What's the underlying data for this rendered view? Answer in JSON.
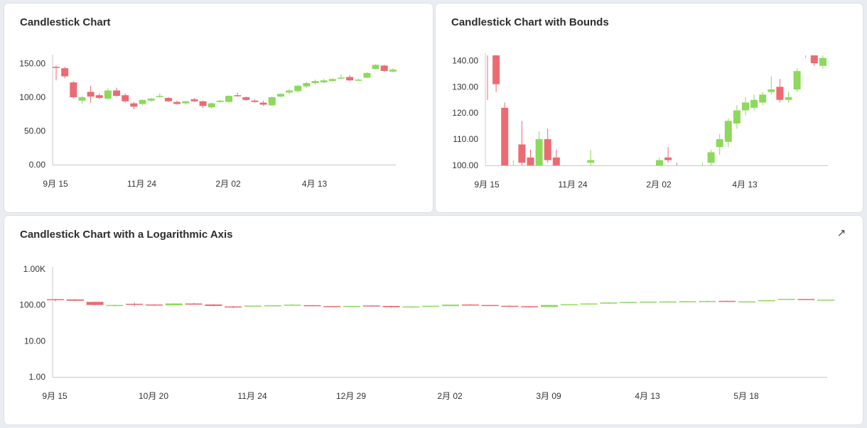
{
  "colors": {
    "up": "#8cd95c",
    "down": "#ec6a72",
    "axis": "#c8c8c8"
  },
  "cards": [
    {
      "title": "Candlestick Chart"
    },
    {
      "title": "Candlestick Chart with Bounds"
    },
    {
      "title": "Candlestick Chart with a Logarithmic Axis",
      "expand_icon": "expand-arrow-icon"
    }
  ],
  "chart_data": [
    {
      "type": "candlestick",
      "title": "Candlestick Chart",
      "ylim": [
        0,
        160
      ],
      "y_ticks": [
        "0.00",
        "50.00",
        "100.00",
        "150.00"
      ],
      "y_tick_values": [
        0,
        50,
        100,
        150
      ],
      "x_ticks": [
        "9月 15",
        "11月 24",
        "2月 02",
        "4月 13"
      ],
      "x_tick_positions": [
        0,
        10,
        20,
        30
      ],
      "series": "shared"
    },
    {
      "type": "candlestick",
      "title": "Candlestick Chart with Bounds",
      "ylim": [
        100,
        142
      ],
      "y_ticks": [
        "100.00",
        "110.00",
        "120.00",
        "130.00",
        "140.00"
      ],
      "y_tick_values": [
        100,
        110,
        120,
        130,
        140
      ],
      "x_ticks": [
        "9月 15",
        "11月 24",
        "2月 02",
        "4月 13"
      ],
      "x_tick_positions": [
        0,
        10,
        20,
        30
      ],
      "series": "shared"
    },
    {
      "type": "candlestick",
      "title": "Candlestick Chart with a Logarithmic Axis",
      "y_scale": "log",
      "ylim": [
        1,
        1000
      ],
      "y_ticks": [
        "1.00",
        "10.00",
        "100.00",
        "1.00K"
      ],
      "y_tick_values": [
        1,
        10,
        100,
        1000
      ],
      "x_ticks": [
        "9月 15",
        "10月 20",
        "11月 24",
        "12月 29",
        "2月 02",
        "3月 09",
        "4月 13",
        "5月 18"
      ],
      "x_tick_positions": [
        0,
        5,
        10,
        15,
        20,
        25,
        30,
        35
      ],
      "series": "shared"
    }
  ],
  "candles": [
    {
      "o": 145,
      "h": 147,
      "l": 125,
      "c": 144
    },
    {
      "o": 143,
      "h": 145,
      "l": 128,
      "c": 131
    },
    {
      "o": 122,
      "h": 124,
      "l": 98,
      "c": 100
    },
    {
      "o": 95,
      "h": 102,
      "l": 90,
      "c": 100
    },
    {
      "o": 108,
      "h": 117,
      "l": 92,
      "c": 101
    },
    {
      "o": 103,
      "h": 106,
      "l": 97,
      "c": 99
    },
    {
      "o": 98,
      "h": 113,
      "l": 96,
      "c": 110
    },
    {
      "o": 110,
      "h": 114,
      "l": 101,
      "c": 102
    },
    {
      "o": 103,
      "h": 106,
      "l": 92,
      "c": 94
    },
    {
      "o": 91,
      "h": 93,
      "l": 82,
      "c": 86
    },
    {
      "o": 90,
      "h": 97,
      "l": 88,
      "c": 96
    },
    {
      "o": 95,
      "h": 99,
      "l": 93,
      "c": 98
    },
    {
      "o": 101,
      "h": 106,
      "l": 99,
      "c": 102
    },
    {
      "o": 99,
      "h": 100,
      "l": 93,
      "c": 94
    },
    {
      "o": 93,
      "h": 95,
      "l": 89,
      "c": 90
    },
    {
      "o": 91,
      "h": 95,
      "l": 89,
      "c": 94
    },
    {
      "o": 97,
      "h": 99,
      "l": 93,
      "c": 94
    },
    {
      "o": 94,
      "h": 95,
      "l": 84,
      "c": 87
    },
    {
      "o": 85,
      "h": 92,
      "l": 83,
      "c": 91
    },
    {
      "o": 93,
      "h": 96,
      "l": 92,
      "c": 95
    },
    {
      "o": 93,
      "h": 103,
      "l": 92,
      "c": 102
    },
    {
      "o": 103,
      "h": 107,
      "l": 101,
      "c": 102
    },
    {
      "o": 100,
      "h": 101,
      "l": 95,
      "c": 96
    },
    {
      "o": 95,
      "h": 97,
      "l": 92,
      "c": 93
    },
    {
      "o": 92,
      "h": 95,
      "l": 87,
      "c": 89
    },
    {
      "o": 88,
      "h": 101,
      "l": 87,
      "c": 100
    },
    {
      "o": 101,
      "h": 106,
      "l": 100,
      "c": 105
    },
    {
      "o": 107,
      "h": 112,
      "l": 104,
      "c": 110
    },
    {
      "o": 109,
      "h": 118,
      "l": 107,
      "c": 117
    },
    {
      "o": 116,
      "h": 123,
      "l": 114,
      "c": 121
    },
    {
      "o": 121,
      "h": 126,
      "l": 119,
      "c": 124
    },
    {
      "o": 122,
      "h": 127,
      "l": 121,
      "c": 125
    },
    {
      "o": 124,
      "h": 128,
      "l": 123,
      "c": 127
    },
    {
      "o": 128,
      "h": 134,
      "l": 127,
      "c": 129
    },
    {
      "o": 130,
      "h": 133,
      "l": 124,
      "c": 125
    },
    {
      "o": 125,
      "h": 128,
      "l": 124,
      "c": 126
    },
    {
      "o": 129,
      "h": 137,
      "l": 128,
      "c": 136
    },
    {
      "o": 142,
      "h": 149,
      "l": 141,
      "c": 148
    },
    {
      "o": 147,
      "h": 148,
      "l": 138,
      "c": 139
    },
    {
      "o": 138,
      "h": 143,
      "l": 137,
      "c": 141
    }
  ]
}
